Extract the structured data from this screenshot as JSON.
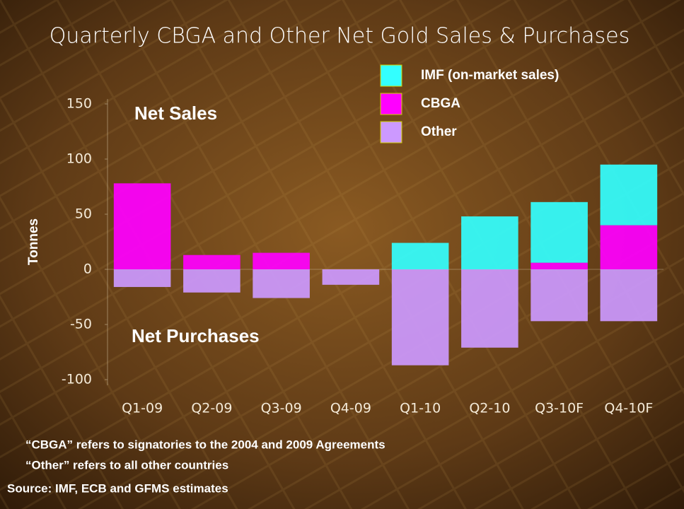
{
  "chart_data": {
    "type": "stacked-bar",
    "title": "Quarterly CBGA and Other Net Gold Sales & Purchases",
    "y_label": "Tonnes",
    "annotations": [
      "Net Sales",
      "Net Purchases"
    ],
    "notes": [
      "“CBGA” refers to signatories to the 2004 and 2009 Agreements",
      "“Other” refers to all other countries"
    ],
    "source": "Source: IMF, ECB and GFMS estimates",
    "categories": [
      "Q1-09",
      "Q2-09",
      "Q3-09",
      "Q4-09",
      "Q1-10",
      "Q2-10",
      "Q3-10F",
      "Q4-10F"
    ],
    "series": [
      {
        "name": "IMF (on-market sales)",
        "color": "#33ffff",
        "values": [
          0,
          0,
          0,
          0,
          24,
          48,
          55,
          55
        ]
      },
      {
        "name": "CBGA",
        "color": "#ff00ff",
        "values": [
          78,
          13,
          15,
          0,
          0,
          0,
          6,
          40
        ]
      },
      {
        "name": "Other",
        "color": "#cc99ff",
        "values": [
          -16,
          -21,
          -26,
          -14,
          -87,
          -71,
          -47,
          -47
        ]
      }
    ],
    "stack_order": [
      "CBGA",
      "IMF (on-market sales)",
      "Other"
    ],
    "ylim": [
      -100,
      150
    ],
    "yticks": [
      -100,
      -50,
      0,
      50,
      100,
      150
    ]
  }
}
